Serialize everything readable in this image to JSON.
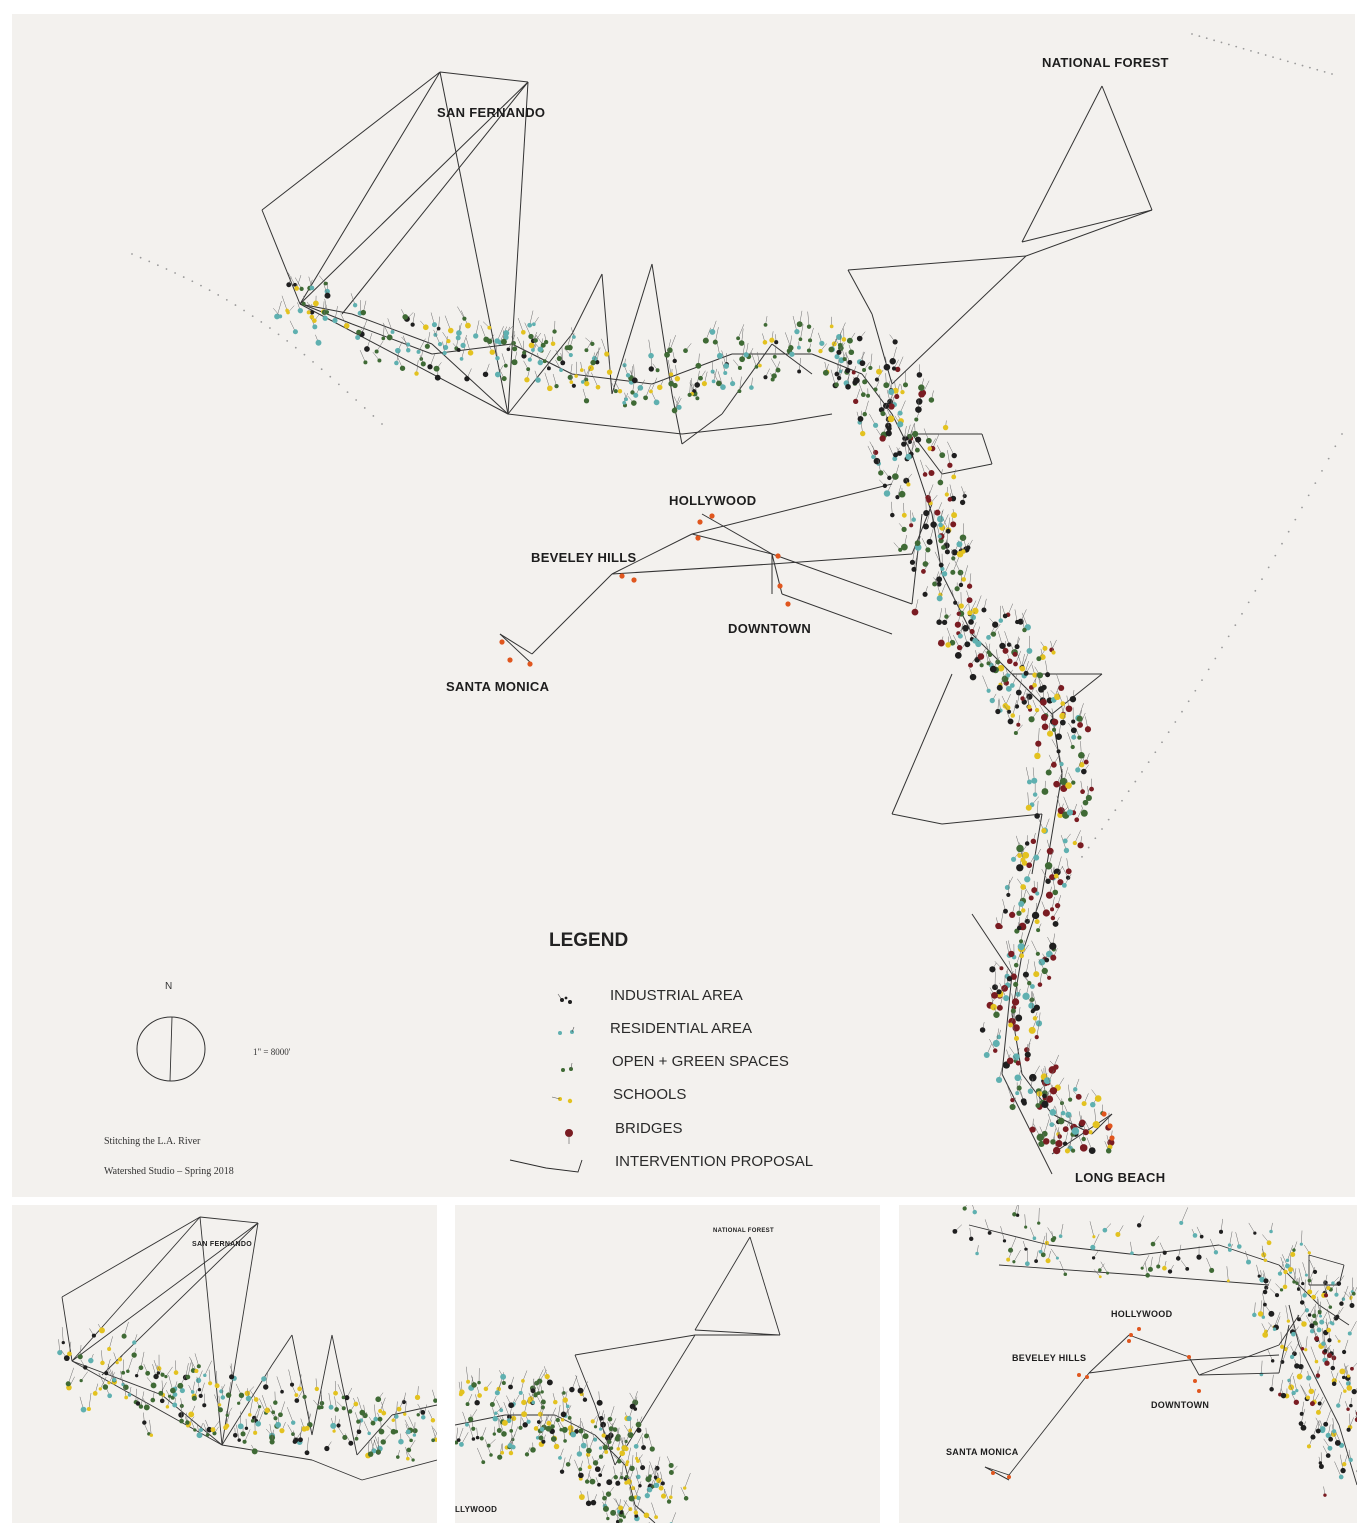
{
  "main": {
    "places": {
      "san_fernando": "SAN FERNANDO",
      "national_forest": "NATIONAL FOREST",
      "hollywood": "HOLLYWOOD",
      "beverly_hills": "BEVELEY HILLS",
      "downtown": "DOWNTOWN",
      "santa_monica": "SANTA MONICA",
      "long_beach": "LONG BEACH"
    },
    "legend": {
      "title": "LEGEND",
      "items": [
        {
          "label": "INDUSTRIAL AREA",
          "color": "#1f1f1f"
        },
        {
          "label": "RESIDENTIAL AREA",
          "color": "#5fb0b0"
        },
        {
          "label": "OPEN + GREEN SPACES",
          "color": "#3f6a35"
        },
        {
          "label": "SCHOOLS",
          "color": "#e3c21f"
        },
        {
          "label": "BRIDGES",
          "color": "#7a1c22"
        },
        {
          "label": "INTERVENTION PROPOSAL",
          "color": "#2a2a2a"
        }
      ]
    },
    "north": "N",
    "scale": "1\" = 8000'",
    "credit_line1": "Stitching the L.A. River",
    "credit_line2": "Watershed Studio – Spring 2018"
  },
  "details": [
    {
      "label": "SAN FERNANDO"
    },
    {
      "label": "NATIONAL FOREST",
      "label2": "LLYWOOD"
    },
    {
      "hollywood": "HOLLYWOOD",
      "beverly": "BEVELEY HILLS",
      "downtown": "DOWNTOWN",
      "santa_monica": "SANTA MONICA"
    }
  ],
  "colors": {
    "industrial": "#1f1f1f",
    "residential": "#5fb0b0",
    "green": "#3f6a35",
    "school": "#e3c21f",
    "bridge": "#7a1c22",
    "orange": "#e0561e",
    "string": "#333333",
    "wall": "#f3f1ee"
  }
}
